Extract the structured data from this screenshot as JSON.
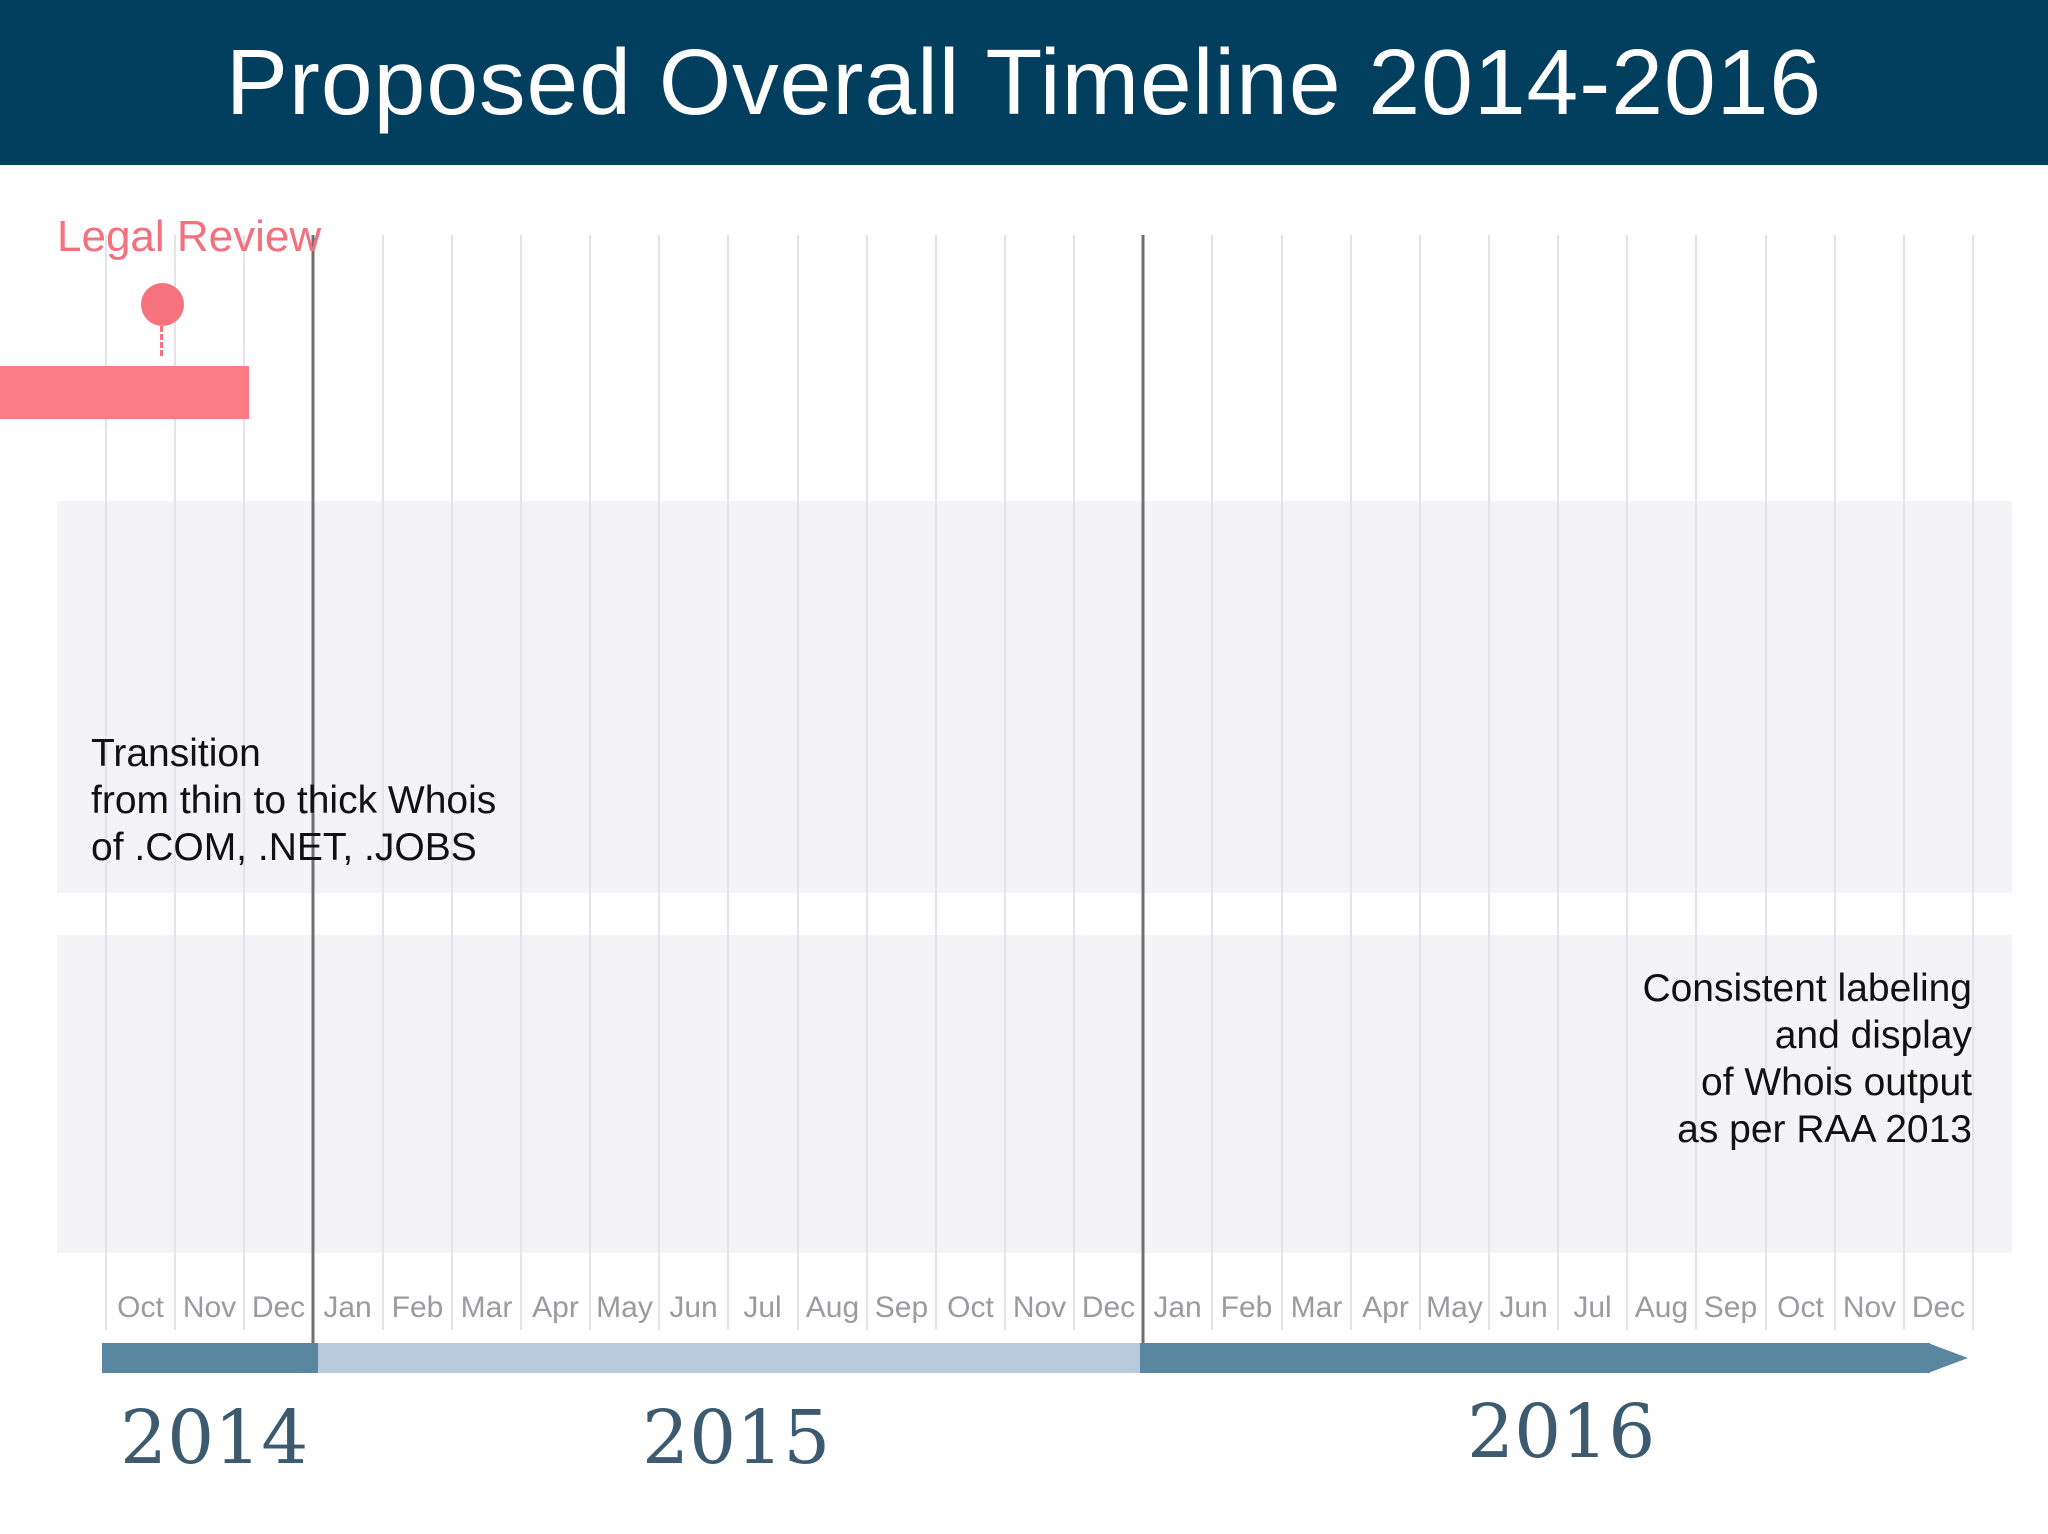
{
  "title": "Proposed Overall Timeline 2014-2016",
  "legal_review": {
    "label": "Legal Review"
  },
  "tasks": {
    "transition": "Transition\nfrom thin to thick Whois\nof .COM, .NET, .JOBS",
    "labeling": "Consistent labeling\nand display\nof Whois output\nas per RAA 2013"
  },
  "months": [
    "Oct",
    "Nov",
    "Dec",
    "Jan",
    "Feb",
    "Mar",
    "Apr",
    "May",
    "Jun",
    "Jul",
    "Aug",
    "Sep",
    "Oct",
    "Nov",
    "Dec",
    "Jan",
    "Feb",
    "Mar",
    "Apr",
    "May",
    "Jun",
    "Jul",
    "Aug",
    "Sep",
    "Oct",
    "Nov",
    "Dec"
  ],
  "years": {
    "y2014": "2014",
    "y2015": "2015",
    "y2016": "2016"
  },
  "colors": {
    "header": "#023f5f",
    "legal": "#fb7b84",
    "axis_dark": "#5a87a0",
    "axis_light": "#b6cadb"
  }
}
